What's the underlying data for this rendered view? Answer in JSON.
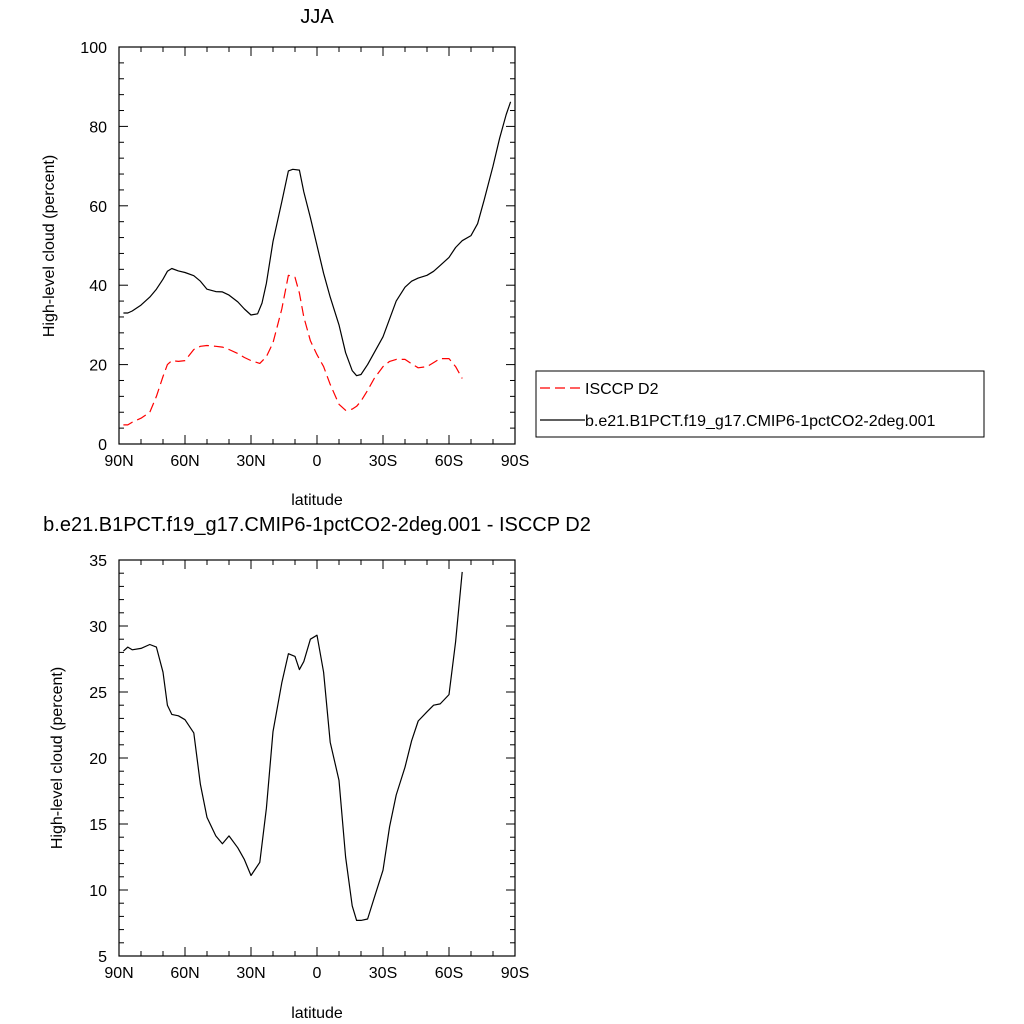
{
  "chart_data": [
    {
      "type": "line",
      "title": "JJA",
      "xlabel": "latitude",
      "ylabel": "High-level cloud (percent)",
      "xlim": [
        90,
        -90
      ],
      "ylim": [
        0,
        100
      ],
      "xticks": [
        90,
        60,
        30,
        0,
        -30,
        -60,
        -90
      ],
      "xtick_labels": [
        "90N",
        "60N",
        "30N",
        "0",
        "30S",
        "60S",
        "90S"
      ],
      "yticks": [
        0,
        20,
        40,
        60,
        80,
        100
      ],
      "ytick_labels": [
        "0",
        "20",
        "40",
        "60",
        "80",
        "100"
      ],
      "legend_position": "right",
      "series": [
        {
          "name": "ISCCP D2",
          "color": "#ff0000",
          "dash": true,
          "x": [
            88,
            86,
            84,
            80,
            76,
            73,
            70,
            68,
            66,
            63,
            60,
            56,
            53,
            50,
            46,
            43,
            40,
            36,
            33,
            30,
            26,
            23,
            20,
            16,
            13,
            10,
            8,
            6,
            3,
            0,
            -3,
            -6,
            -10,
            -13,
            -16,
            -18,
            -20,
            -23,
            -26,
            -30,
            -33,
            -36,
            -40,
            -43,
            -46,
            -50,
            -53,
            -56,
            -60,
            -63,
            -66
          ],
          "y": [
            4.8,
            4.8,
            5.5,
            6.5,
            8,
            12,
            17,
            20,
            21,
            20.8,
            21,
            23.8,
            24.6,
            24.8,
            24.6,
            24.4,
            23.8,
            22.8,
            21.8,
            21,
            20.3,
            22,
            25.5,
            34,
            42.5,
            42,
            38,
            32,
            26,
            22.5,
            19.5,
            15,
            10,
            8.5,
            8.8,
            9.5,
            10.8,
            13.5,
            16.5,
            19.5,
            20.8,
            21.3,
            21.3,
            20.2,
            19.2,
            19.5,
            20.5,
            21.5,
            21.5,
            19.5,
            16.5
          ]
        },
        {
          "name": "b.e21.B1PCT.f19_g17.CMIP6-1pctCO2-2deg.001",
          "color": "#000000",
          "dash": false,
          "x": [
            88,
            86,
            84,
            80,
            76,
            73,
            70,
            68,
            66,
            63,
            60,
            56,
            53,
            50,
            46,
            43,
            40,
            36,
            33,
            30,
            27,
            25,
            23,
            20,
            16,
            13,
            11,
            8,
            6,
            3,
            0,
            -3,
            -6,
            -10,
            -13,
            -16,
            -18,
            -20,
            -23,
            -26,
            -30,
            -33,
            -36,
            -40,
            -43,
            -46,
            -50,
            -53,
            -56,
            -60,
            -63,
            -66,
            -70,
            -73,
            -76,
            -80,
            -83,
            -86,
            -88
          ],
          "y": [
            33,
            33,
            33.5,
            35,
            37,
            39,
            41.5,
            43.5,
            44.2,
            43.6,
            43.2,
            42.4,
            41,
            39,
            38.4,
            38.3,
            37.5,
            35.8,
            34,
            32.5,
            32.8,
            35.5,
            40.5,
            51,
            61,
            68.8,
            69.2,
            69,
            63.5,
            57,
            50,
            43,
            37,
            30,
            23,
            18.5,
            17.2,
            17.5,
            20,
            23,
            27,
            31.5,
            36,
            39.5,
            41,
            41.8,
            42.5,
            43.5,
            45,
            47,
            49.5,
            51.2,
            52.5,
            55.5,
            61.5,
            70,
            77,
            83,
            86.2
          ]
        }
      ]
    },
    {
      "type": "line",
      "title": "b.e21.B1PCT.f19_g17.CMIP6-1pctCO2-2deg.001 - ISCCP D2",
      "xlabel": "latitude",
      "ylabel": "High-level cloud (percent)",
      "xlim": [
        90,
        -90
      ],
      "ylim": [
        5,
        35
      ],
      "xticks": [
        90,
        60,
        30,
        0,
        -30,
        -60,
        -90
      ],
      "xtick_labels": [
        "90N",
        "60N",
        "30N",
        "0",
        "30S",
        "60S",
        "90S"
      ],
      "yticks": [
        5,
        10,
        15,
        20,
        25,
        30,
        35
      ],
      "ytick_labels": [
        "5",
        "10",
        "15",
        "20",
        "25",
        "30",
        "35"
      ],
      "series": [
        {
          "color": "#000000",
          "dash": false,
          "x": [
            88,
            86,
            84,
            80,
            76,
            73,
            70,
            68,
            66,
            63,
            60,
            56,
            53,
            50,
            46,
            43,
            40,
            36,
            33,
            30,
            26,
            23,
            20,
            16,
            13,
            10,
            8,
            6,
            3,
            0,
            -3,
            -6,
            -10,
            -13,
            -16,
            -18,
            -20,
            -23,
            -26,
            -30,
            -33,
            -36,
            -40,
            -43,
            -46,
            -50,
            -53,
            -56,
            -60,
            -63,
            -66
          ],
          "y": [
            28.1,
            28.4,
            28.2,
            28.3,
            28.6,
            28.4,
            26.5,
            24,
            23.3,
            23.2,
            22.9,
            21.9,
            18,
            15.5,
            14.1,
            13.5,
            14.1,
            13.2,
            12.3,
            11.1,
            12.1,
            16.2,
            22,
            25.7,
            27.9,
            27.7,
            26.7,
            27.3,
            29,
            29.3,
            26.5,
            21.2,
            18.3,
            12.5,
            8.8,
            7.7,
            7.7,
            7.8,
            9.4,
            11.5,
            14.8,
            17.2,
            19.3,
            21.3,
            22.8,
            23.5,
            24,
            24.1,
            24.8,
            28.8,
            34.1
          ]
        }
      ]
    }
  ]
}
